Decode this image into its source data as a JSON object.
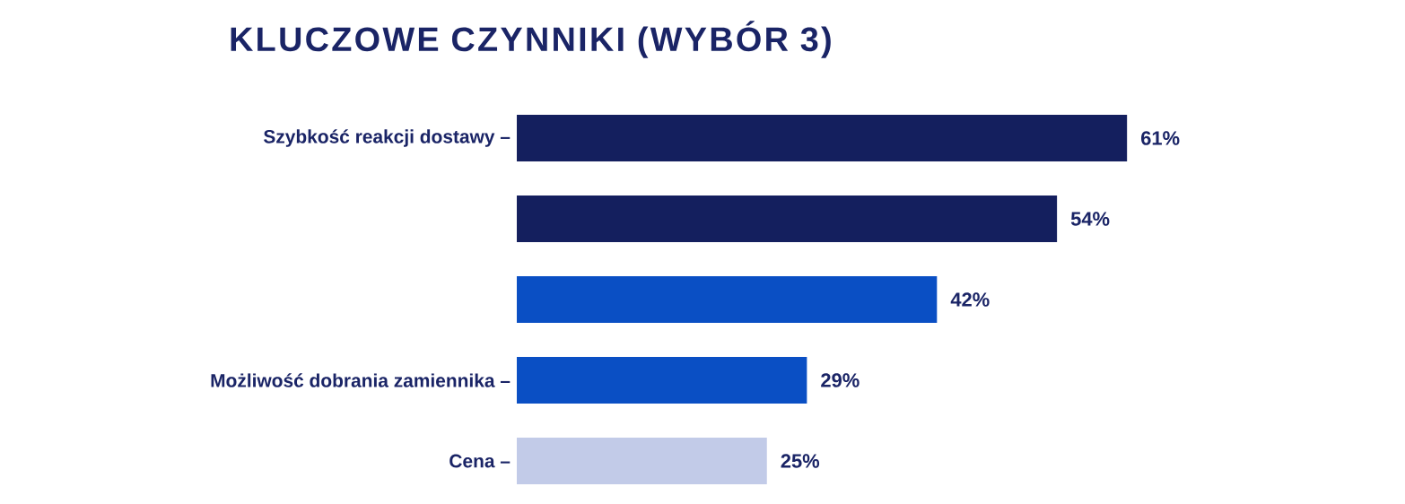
{
  "chart_data": {
    "type": "bar",
    "orientation": "horizontal",
    "title": "KLUCZOWE CZYNNIKI (WYBÓR 3)",
    "categories": [
      "Szybkość reakcji dostawy –",
      null,
      null,
      "Możliwość dobrania zamiennika –",
      "Cena –"
    ],
    "values": [
      61,
      54,
      42,
      29,
      25
    ],
    "colors": [
      "#141f5e",
      "#141f5e",
      "#0a4fc4",
      "#0a4fc4",
      "#c2cbe8"
    ],
    "value_labels": [
      "61%",
      "54%",
      "42%",
      "29%",
      "25%"
    ]
  }
}
